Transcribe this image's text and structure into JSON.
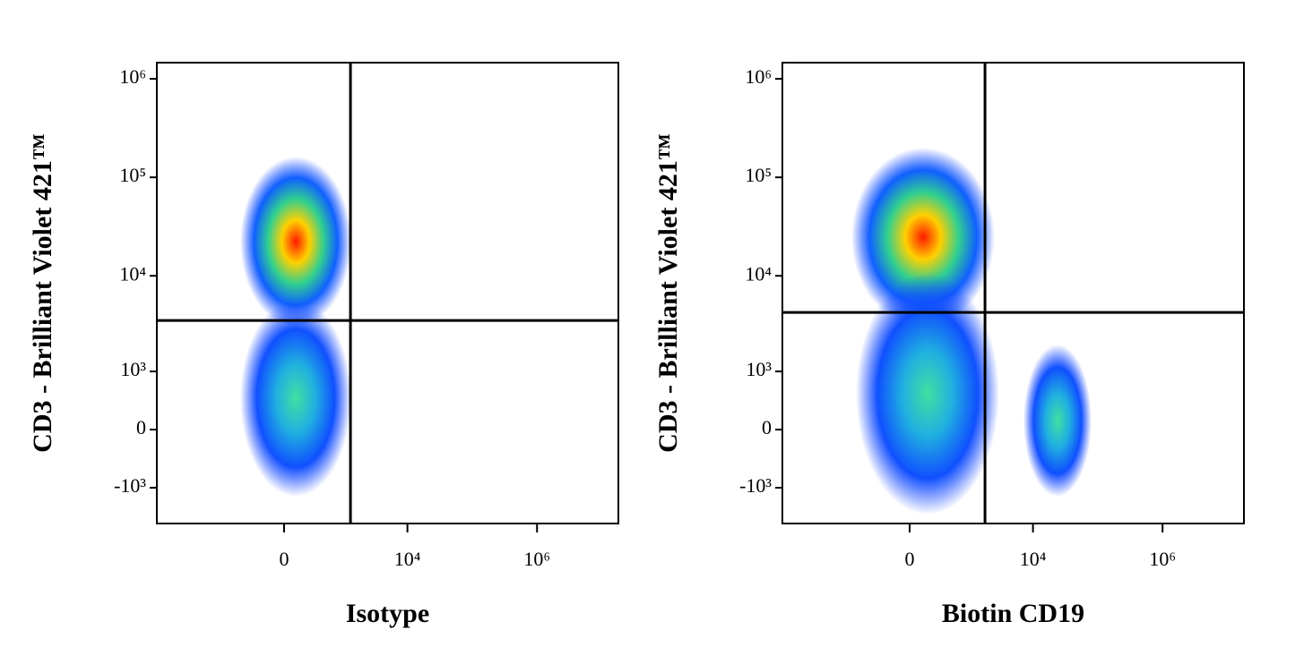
{
  "chart_data": [
    {
      "type": "density",
      "x_label": "Isotype",
      "y_label": "CD3 - Brilliant Violet 421™",
      "xlim": [
        -11500,
        18000000
      ],
      "ylim": [
        -2440,
        1460000
      ],
      "xticks": [
        0,
        {
          "value": 10000,
          "label": "10⁴"
        },
        {
          "value": 1000000,
          "label": "10⁶"
        }
      ],
      "yticks": [
        {
          "value": -1000,
          "label": "-10³"
        },
        0,
        {
          "value": 1000,
          "label": "10³"
        },
        {
          "value": 10000,
          "label": "10⁴"
        },
        {
          "value": 100000,
          "label": "10⁵"
        },
        {
          "value": 1000000,
          "label": "10⁶"
        }
      ],
      "gates": {
        "x": 1310,
        "y": 3500
      }
    },
    {
      "type": "density",
      "x_label": "Biotin CD19",
      "y_label": "CD3 - Brilliant Violet 421™",
      "xlim": [
        -11500,
        18000000
      ],
      "ylim": [
        -2440,
        1460000
      ],
      "xticks": [
        0,
        {
          "value": 10000,
          "label": "10⁴"
        },
        {
          "value": 1000000,
          "label": "10⁶"
        }
      ],
      "yticks": [
        {
          "value": -1000,
          "label": "-10³"
        },
        0,
        {
          "value": 1000,
          "label": "10³"
        },
        {
          "value": 10000,
          "label": "10⁴"
        },
        {
          "value": 100000,
          "label": "10⁵"
        },
        {
          "value": 1000000,
          "label": "10⁶"
        }
      ],
      "gates": {
        "x": 1810,
        "y": 4240
      }
    }
  ]
}
